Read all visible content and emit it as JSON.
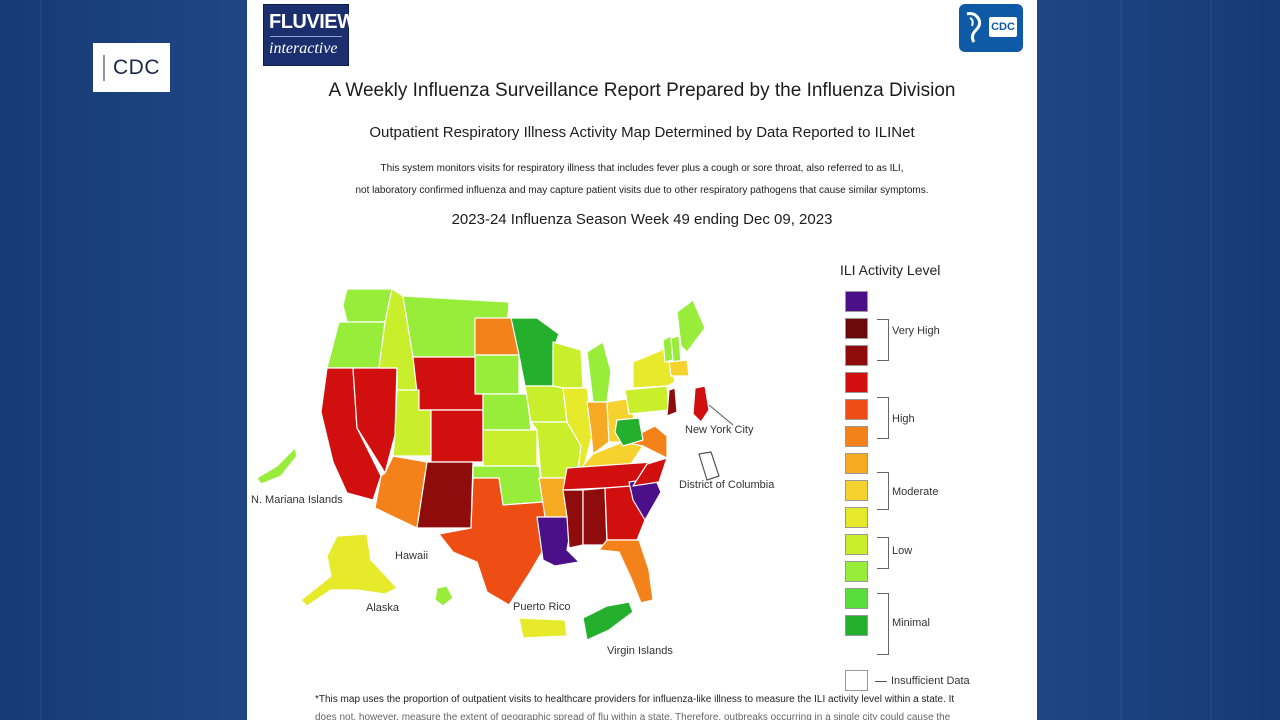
{
  "side_tag": {
    "label": "CDC"
  },
  "header": {
    "fluview_line1": "FLUVIEW",
    "fluview_line2": "interactive",
    "cdc_logo": "CDC"
  },
  "report": {
    "title": "A Weekly Influenza Surveillance Report Prepared by the Influenza Division",
    "subtitle": "Outpatient Respiratory Illness Activity Map Determined by Data Reported to ILINet",
    "desc_line1": "This system monitors visits for respiratory illness that includes fever plus a cough or sore throat, also referred to as ILI,",
    "desc_line2": "not laboratory confirmed influenza and may capture patient visits due to other respiratory pathogens that cause similar symptoms.",
    "week": "2023-24 Influenza Season Week 49 ending Dec 09, 2023",
    "footer_line1": "*This map uses the proportion of outpatient visits to healthcare providers for influenza-like illness to measure the ILI activity level within a state. It",
    "footer_line2": "does not, however, measure the extent of geographic spread of flu within a state. Therefore, outbreaks occurring in a single city could cause the"
  },
  "legend": {
    "title": "ILI Activity Level",
    "colors": [
      "#4b0f8a",
      "#6b0a0a",
      "#8e0c0c",
      "#d10f0f",
      "#ee4d14",
      "#f4821a",
      "#f6aa22",
      "#f6d22e",
      "#e6ea2a",
      "#c8ee2c",
      "#98ec3a",
      "#58dd3d",
      "#24b02d"
    ],
    "groups": [
      "Very High",
      "High",
      "Moderate",
      "Low",
      "Minimal"
    ],
    "insufficient": "Insufficient Data"
  },
  "map_labels": {
    "nyc": "New York City",
    "dc": "District of Columbia",
    "nmi": "N. Mariana Islands",
    "hawaii": "Hawaii",
    "alaska": "Alaska",
    "pr": "Puerto Rico",
    "vi": "Virgin Islands"
  },
  "levels": {
    "washington": "#98ec3a",
    "oregon": "#98ec3a",
    "california": "#d10f0f",
    "nevada": "#d10f0f",
    "idaho": "#c8ee2c",
    "montana": "#98ec3a",
    "wyoming": "#d10f0f",
    "utah": "#c8ee2c",
    "colorado": "#d10f0f",
    "arizona": "#f4821a",
    "new_mexico": "#8e0c0c",
    "north_dakota": "#f4821a",
    "south_dakota": "#98ec3a",
    "nebraska": "#98ec3a",
    "kansas": "#c8ee2c",
    "oklahoma": "#98ec3a",
    "texas": "#ee4d14",
    "minnesota": "#24b02d",
    "iowa": "#c8ee2c",
    "missouri": "#c8ee2c",
    "arkansas": "#f6aa22",
    "louisiana": "#4b0f8a",
    "wisconsin": "#c8ee2c",
    "illinois": "#e6ea2a",
    "michigan": "#98ec3a",
    "indiana": "#f6aa22",
    "ohio": "#f6d22e",
    "kentucky": "#f6d22e",
    "tennessee": "#d10f0f",
    "mississippi": "#8e0c0c",
    "alabama": "#8e0c0c",
    "georgia": "#d10f0f",
    "florida": "#f4821a",
    "south_carolina": "#4b0f8a",
    "north_carolina": "#d10f0f",
    "virginia": "#f4821a",
    "west_virginia": "#24b02d",
    "pennsylvania": "#c8ee2c",
    "new_york": "#e6ea2a",
    "maine": "#98ec3a",
    "vermont": "#98ec3a",
    "new_hampshire": "#98ec3a",
    "massachusetts": "#f6d22e",
    "new_jersey": "#8e0c0c",
    "nyc": "#d10f0f",
    "dc": "#ffffff",
    "alaska": "#e6ea2a",
    "hawaii": "#98ec3a",
    "puerto_rico": "#e6ea2a",
    "virgin_islands": "#24b02d",
    "nmi": "#98ec3a"
  }
}
